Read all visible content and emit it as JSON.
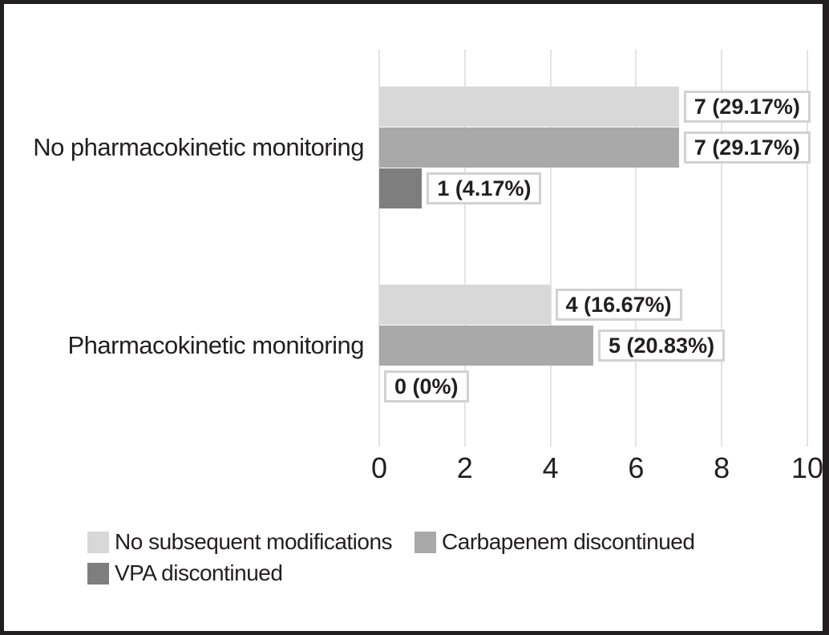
{
  "chart_data": {
    "type": "bar",
    "orientation": "horizontal",
    "categories": [
      "No pharmacokinetic monitoring",
      "Pharmacokinetic monitoring"
    ],
    "series": [
      {
        "name": "No subsequent modifications",
        "color": "#d8d8d8",
        "values": [
          7,
          4
        ],
        "value_labels": [
          "7 (29.17%)",
          "4 (16.67%)"
        ]
      },
      {
        "name": "Carbapenem discontinued",
        "color": "#a9a9a9",
        "values": [
          7,
          5
        ],
        "value_labels": [
          "7 (29.17%)",
          "5 (20.83%)"
        ]
      },
      {
        "name": "VPA discontinued",
        "color": "#7e7e7e",
        "values": [
          1,
          0
        ],
        "value_labels": [
          "1 (4.17%)",
          "0 (0%)"
        ]
      }
    ],
    "xlim": [
      0,
      10
    ],
    "x_ticks": [
      0,
      2,
      4,
      6,
      8,
      10
    ],
    "grid": "vertical",
    "legend_position": "bottom-left"
  },
  "colors": {
    "background": "#ffffff",
    "frame_border": "#231f20",
    "gridline": "#e3e3e3",
    "label_box_border": "#d2d2d2",
    "text": "#231f20"
  }
}
